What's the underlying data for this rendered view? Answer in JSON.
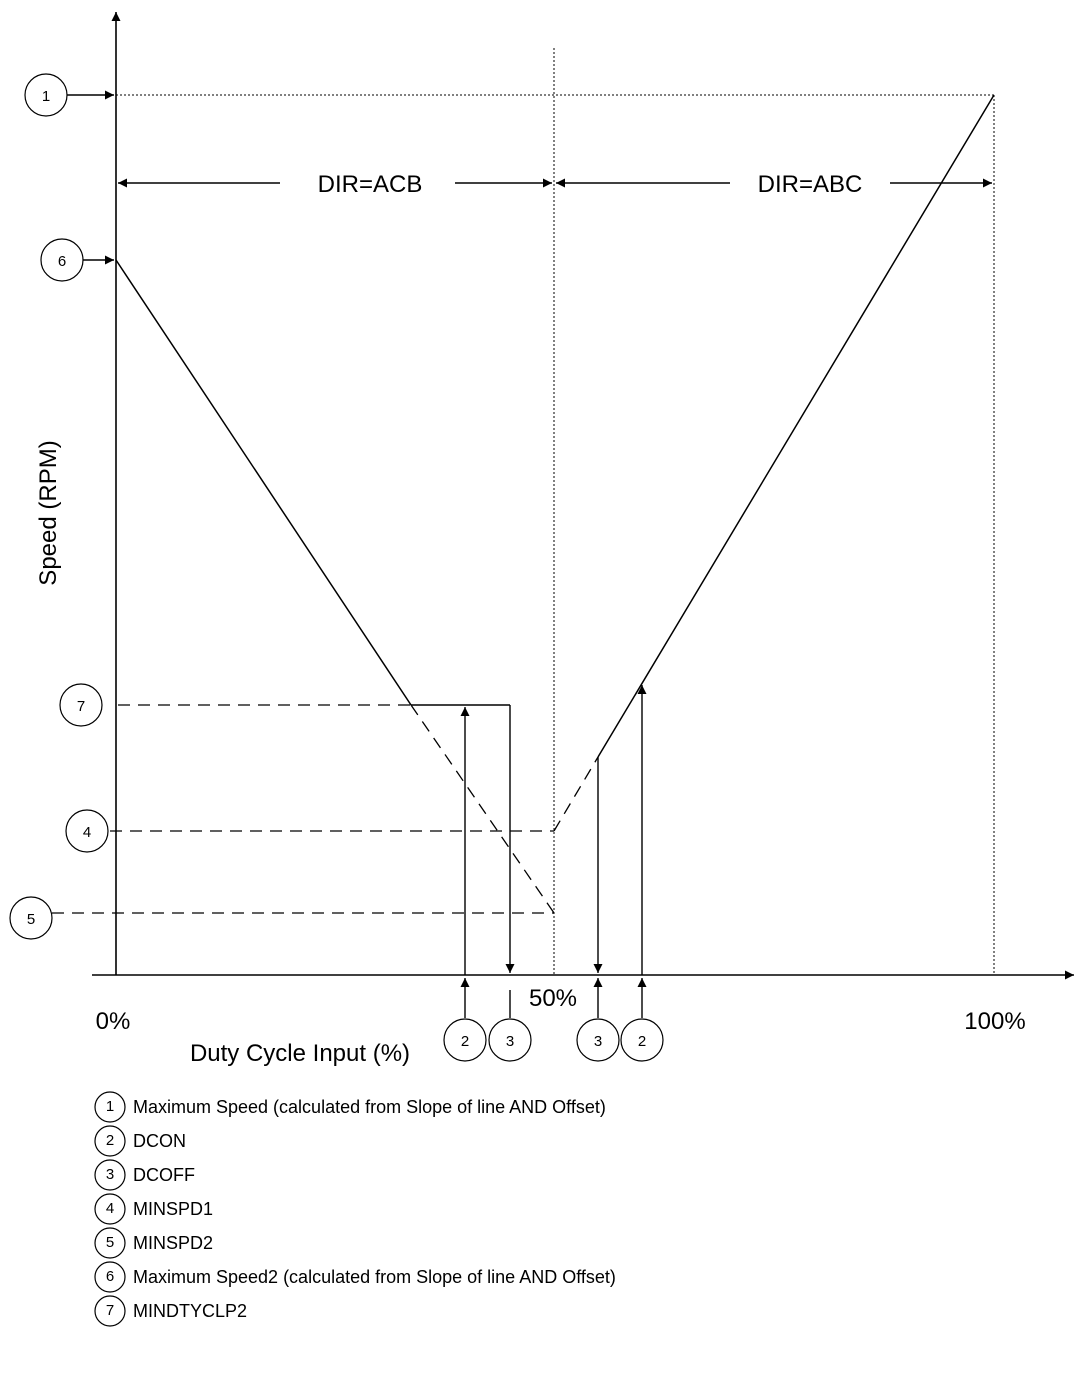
{
  "axes": {
    "y_label": "Speed (RPM)",
    "x_label": "Duty Cycle Input (%)",
    "x_tick_0": "0%",
    "x_tick_50": "50%",
    "x_tick_100": "100%"
  },
  "regions": {
    "left": "DIR=ACB",
    "right": "DIR=ABC"
  },
  "markers": {
    "m1": "1",
    "m2": "2",
    "m3": "3",
    "m4": "4",
    "m5": "5",
    "m6": "6",
    "m7": "7"
  },
  "legend": [
    {
      "num": "1",
      "text": "Maximum Speed (calculated from Slope of line AND Offset)"
    },
    {
      "num": "2",
      "text": "DCON"
    },
    {
      "num": "3",
      "text": "DCOFF"
    },
    {
      "num": "4",
      "text": "MINSPD1"
    },
    {
      "num": "5",
      "text": "MINSPD2"
    },
    {
      "num": "6",
      "text": "Maximum Speed2 (calculated from Slope of line AND Offset)"
    },
    {
      "num": "7",
      "text": "MINDTYCLP2"
    }
  ]
}
